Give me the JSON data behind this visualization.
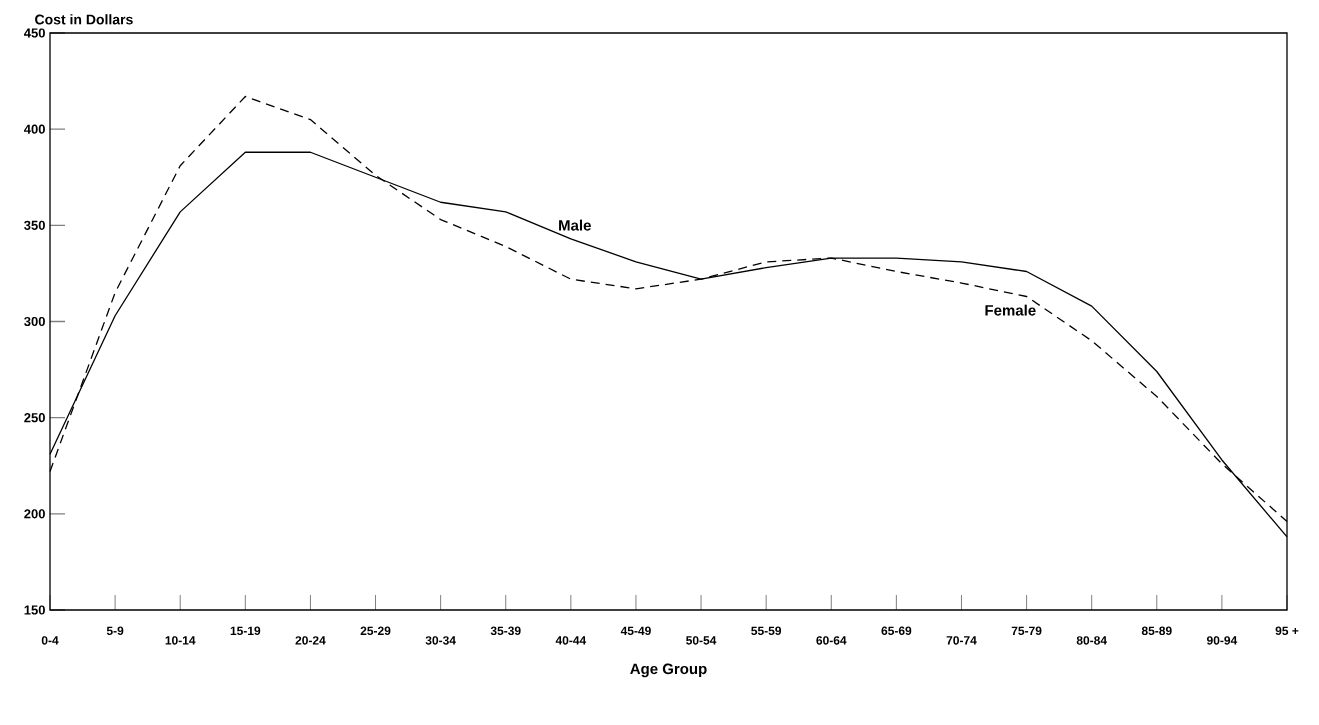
{
  "chart_data": {
    "type": "line",
    "xlabel": "Age Group",
    "ylabel": "Cost in Dollars",
    "categories": [
      "0-4",
      "5-9",
      "10-14",
      "15-19",
      "20-24",
      "25-29",
      "30-34",
      "35-39",
      "40-44",
      "45-49",
      "50-54",
      "55-59",
      "60-64",
      "65-69",
      "70-74",
      "75-79",
      "80-84",
      "85-89",
      "90-94",
      "95 +"
    ],
    "series": [
      {
        "name": "Male",
        "color": "#000000",
        "line_style": "solid",
        "values": [
          231,
          303,
          357,
          388,
          388,
          375,
          362,
          357,
          343,
          331,
          322,
          328,
          333,
          333,
          331,
          326,
          308,
          274,
          228,
          188
        ]
      },
      {
        "name": "Female",
        "color": "#000000",
        "line_style": "dashed",
        "values": [
          222,
          315,
          381,
          417,
          405,
          376,
          353,
          339,
          322,
          317,
          322,
          331,
          333,
          326,
          320,
          313,
          290,
          261,
          226,
          196
        ]
      }
    ],
    "ylim": [
      150,
      450
    ],
    "yticks": [
      150,
      200,
      250,
      300,
      350,
      400,
      450
    ],
    "marker": "none"
  }
}
